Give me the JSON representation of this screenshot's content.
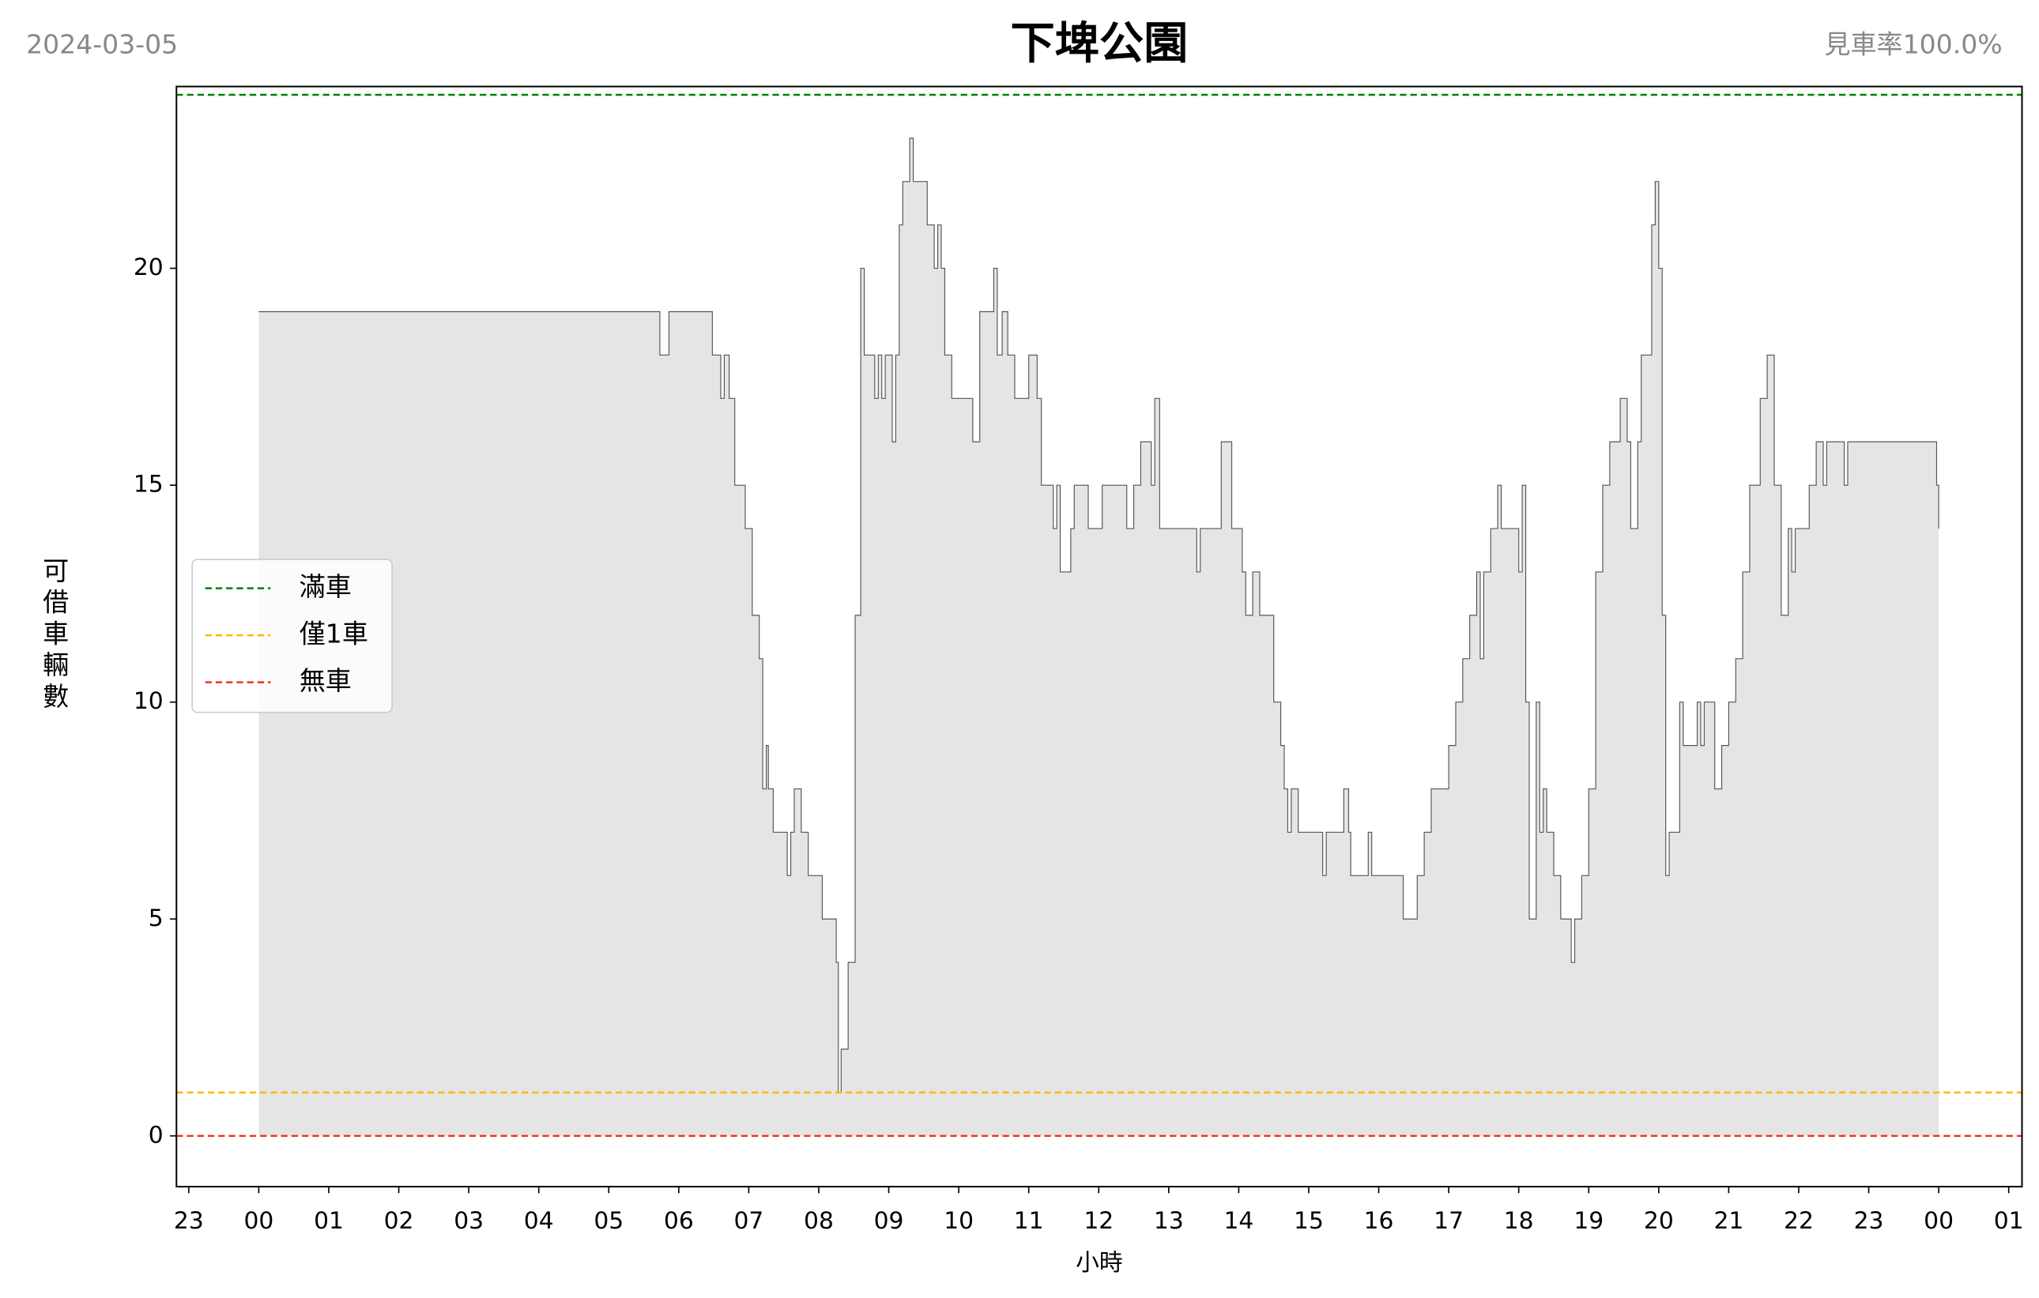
{
  "chart_data": {
    "type": "step-area",
    "title": "下埤公園",
    "date": "2024-03-05",
    "rate_label": "見車率100.0%",
    "xlabel": "小時",
    "ylabel": "可借車輛數",
    "xlim": [
      -1.176,
      25.19
    ],
    "ylim": [
      -1.17,
      24.19
    ],
    "xticks": [
      {
        "value": -1,
        "label": "23"
      },
      {
        "value": 0,
        "label": "00"
      },
      {
        "value": 1,
        "label": "01"
      },
      {
        "value": 2,
        "label": "02"
      },
      {
        "value": 3,
        "label": "03"
      },
      {
        "value": 4,
        "label": "04"
      },
      {
        "value": 5,
        "label": "05"
      },
      {
        "value": 6,
        "label": "06"
      },
      {
        "value": 7,
        "label": "07"
      },
      {
        "value": 8,
        "label": "08"
      },
      {
        "value": 9,
        "label": "09"
      },
      {
        "value": 10,
        "label": "10"
      },
      {
        "value": 11,
        "label": "11"
      },
      {
        "value": 12,
        "label": "12"
      },
      {
        "value": 13,
        "label": "13"
      },
      {
        "value": 14,
        "label": "14"
      },
      {
        "value": 15,
        "label": "15"
      },
      {
        "value": 16,
        "label": "16"
      },
      {
        "value": 17,
        "label": "17"
      },
      {
        "value": 18,
        "label": "18"
      },
      {
        "value": 19,
        "label": "19"
      },
      {
        "value": 20,
        "label": "20"
      },
      {
        "value": 21,
        "label": "21"
      },
      {
        "value": 22,
        "label": "22"
      },
      {
        "value": 23,
        "label": "23"
      },
      {
        "value": 24,
        "label": "00"
      },
      {
        "value": 25,
        "label": "01"
      }
    ],
    "yticks": [
      0,
      5,
      10,
      15,
      20
    ],
    "hlines": [
      {
        "name": "滿車",
        "value": 24,
        "color": "#008000"
      },
      {
        "name": "僅1車",
        "value": 1,
        "color": "#ffb800"
      },
      {
        "name": "無車",
        "value": 0,
        "color": "#f03020"
      }
    ],
    "series": [
      {
        "color": "#555555",
        "fill": "#e5e5e5",
        "x": [
          0,
          5.73,
          5.86,
          6.48,
          6.6,
          6.65,
          6.72,
          6.8,
          6.95,
          7.05,
          7.15,
          7.2,
          7.25,
          7.28,
          7.35,
          7.55,
          7.6,
          7.65,
          7.75,
          7.85,
          8.05,
          8.25,
          8.28,
          8.32,
          8.42,
          8.52,
          8.6,
          8.65,
          8.8,
          8.85,
          8.9,
          8.95,
          9.05,
          9.1,
          9.15,
          9.2,
          9.3,
          9.35,
          9.55,
          9.65,
          9.7,
          9.75,
          9.8,
          9.9,
          10.2,
          10.3,
          10.5,
          10.55,
          10.62,
          10.7,
          10.8,
          11,
          11.12,
          11.18,
          11.35,
          11.4,
          11.45,
          11.6,
          11.65,
          11.85,
          12.05,
          12.4,
          12.5,
          12.6,
          12.75,
          12.8,
          12.87,
          13.4,
          13.45,
          13.75,
          13.9,
          14.05,
          14.1,
          14.2,
          14.3,
          14.5,
          14.6,
          14.65,
          14.7,
          14.75,
          14.85,
          15.2,
          15.25,
          15.5,
          15.57,
          15.6,
          15.85,
          15.9,
          16.35,
          16.55,
          16.65,
          16.75,
          17,
          17.1,
          17.2,
          17.3,
          17.4,
          17.45,
          17.5,
          17.6,
          17.7,
          17.75,
          18,
          18.05,
          18.1,
          18.15,
          18.25,
          18.3,
          18.35,
          18.4,
          18.5,
          18.6,
          18.75,
          18.8,
          18.9,
          19,
          19.1,
          19.2,
          19.3,
          19.45,
          19.55,
          19.6,
          19.7,
          19.75,
          19.9,
          19.95,
          20,
          20.05,
          20.1,
          20.15,
          20.3,
          20.35,
          20.55,
          20.6,
          20.65,
          20.8,
          20.9,
          21,
          21.1,
          21.2,
          21.3,
          21.45,
          21.55,
          21.65,
          21.75,
          21.85,
          21.9,
          21.95,
          22.15,
          22.25,
          22.35,
          22.4,
          22.65,
          22.7,
          23.97,
          24
        ],
        "values": [
          19,
          18,
          19,
          18,
          17,
          18,
          17,
          15,
          14,
          12,
          11,
          8,
          9,
          8,
          7,
          6,
          7,
          8,
          7,
          6,
          5,
          4,
          1,
          2,
          4,
          12,
          20,
          18,
          17,
          18,
          17,
          18,
          16,
          18,
          21,
          22,
          23,
          22,
          21,
          20,
          21,
          20,
          18,
          17,
          16,
          19,
          20,
          18,
          19,
          18,
          17,
          18,
          17,
          15,
          14,
          15,
          13,
          14,
          15,
          14,
          15,
          14,
          15,
          16,
          15,
          17,
          14,
          13,
          14,
          16,
          14,
          13,
          12,
          13,
          12,
          10,
          9,
          8,
          7,
          8,
          7,
          6,
          7,
          8,
          7,
          6,
          7,
          6,
          5,
          6,
          7,
          8,
          9,
          10,
          11,
          12,
          13,
          11,
          13,
          14,
          15,
          14,
          13,
          15,
          10,
          5,
          10,
          7,
          8,
          7,
          6,
          5,
          4,
          5,
          6,
          8,
          13,
          15,
          16,
          17,
          16,
          14,
          16,
          18,
          21,
          22,
          20,
          12,
          6,
          7,
          10,
          9,
          10,
          9,
          10,
          8,
          9,
          10,
          11,
          13,
          15,
          17,
          18,
          15,
          12,
          14,
          13,
          14,
          15,
          16,
          15,
          16,
          15,
          16,
          15,
          14
        ]
      }
    ],
    "legend": "center left"
  }
}
